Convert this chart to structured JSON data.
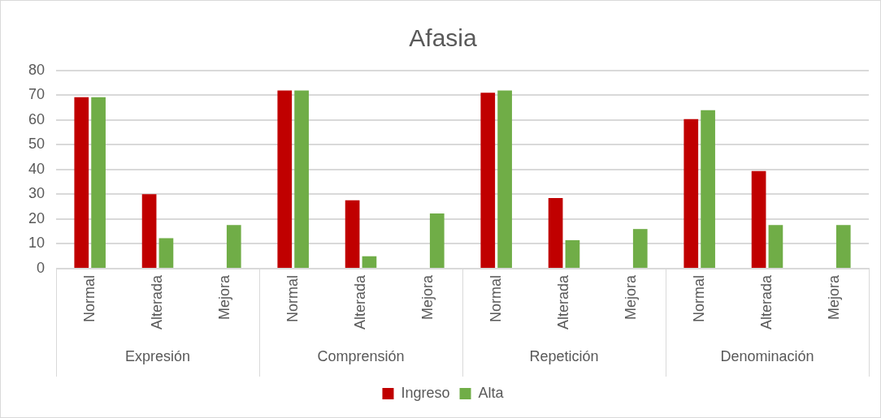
{
  "chart_data": {
    "type": "bar",
    "title": "Afasia",
    "categories": [
      "Normal",
      "Alterada",
      "Mejora",
      "Normal",
      "Alterada",
      "Mejora",
      "Normal",
      "Alterada",
      "Mejora",
      "Normal",
      "Alterada",
      "Mejora"
    ],
    "series": [
      {
        "name": "Ingreso",
        "color": "#c00000",
        "values": [
          69.3,
          30.1,
          null,
          72,
          27.6,
          null,
          71.1,
          28.5,
          null,
          60.4,
          39.4,
          null
        ]
      },
      {
        "name": "Alta",
        "color": "#70ad47",
        "values": [
          69.3,
          12.3,
          17.6,
          72,
          5,
          22.3,
          72,
          11.5,
          16,
          64,
          17.6,
          17.6
        ]
      }
    ],
    "ylim": [
      0,
      80
    ],
    "yticks": [
      0,
      10,
      20,
      30,
      40,
      50,
      60,
      70,
      80
    ],
    "grid": "y",
    "legend": "bottom",
    "annotations": [
      "Expresión",
      "Comprensión",
      "Repetición",
      "Denominación"
    ]
  }
}
